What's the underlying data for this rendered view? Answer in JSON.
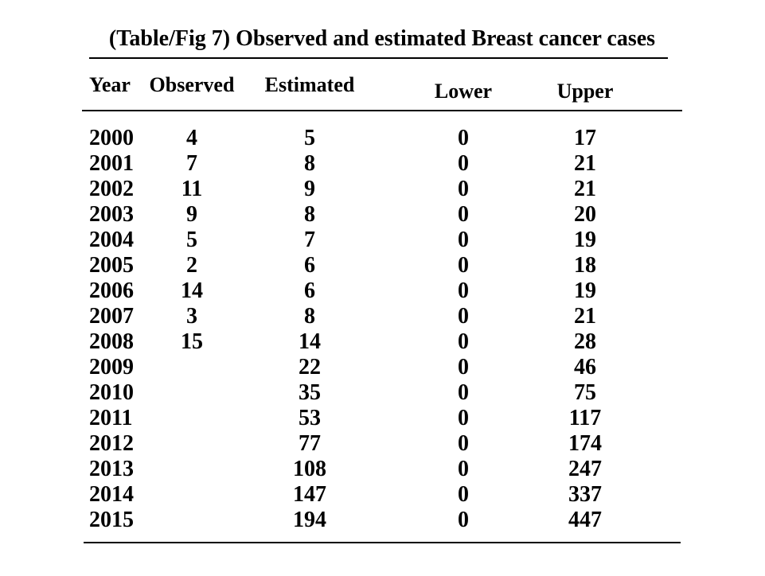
{
  "chart_data": {
    "type": "table",
    "title": "(Table/Fig 7) Observed and estimated Breast cancer cases",
    "columns": [
      "Year",
      "Observed",
      "Estimated",
      "Lower",
      "Upper"
    ],
    "rows": [
      [
        "2000",
        4,
        5,
        0,
        17
      ],
      [
        "2001",
        7,
        8,
        0,
        21
      ],
      [
        "2002",
        11,
        9,
        0,
        21
      ],
      [
        "2003",
        9,
        8,
        0,
        20
      ],
      [
        "2004",
        5,
        7,
        0,
        19
      ],
      [
        "2005",
        2,
        6,
        0,
        18
      ],
      [
        "2006",
        14,
        6,
        0,
        19
      ],
      [
        "2007",
        3,
        8,
        0,
        21
      ],
      [
        "2008",
        15,
        14,
        0,
        28
      ],
      [
        "2009",
        null,
        22,
        0,
        46
      ],
      [
        "2010",
        null,
        35,
        0,
        75
      ],
      [
        "2011",
        null,
        53,
        0,
        117
      ],
      [
        "2012",
        null,
        77,
        0,
        174
      ],
      [
        "2013",
        null,
        108,
        0,
        247
      ],
      [
        "2014",
        null,
        147,
        0,
        337
      ],
      [
        "2015",
        null,
        194,
        0,
        447
      ]
    ],
    "layout": {
      "grid": "off",
      "text_color": "#000000",
      "background_color": "#ffffff",
      "rule_color": "#000000"
    }
  }
}
